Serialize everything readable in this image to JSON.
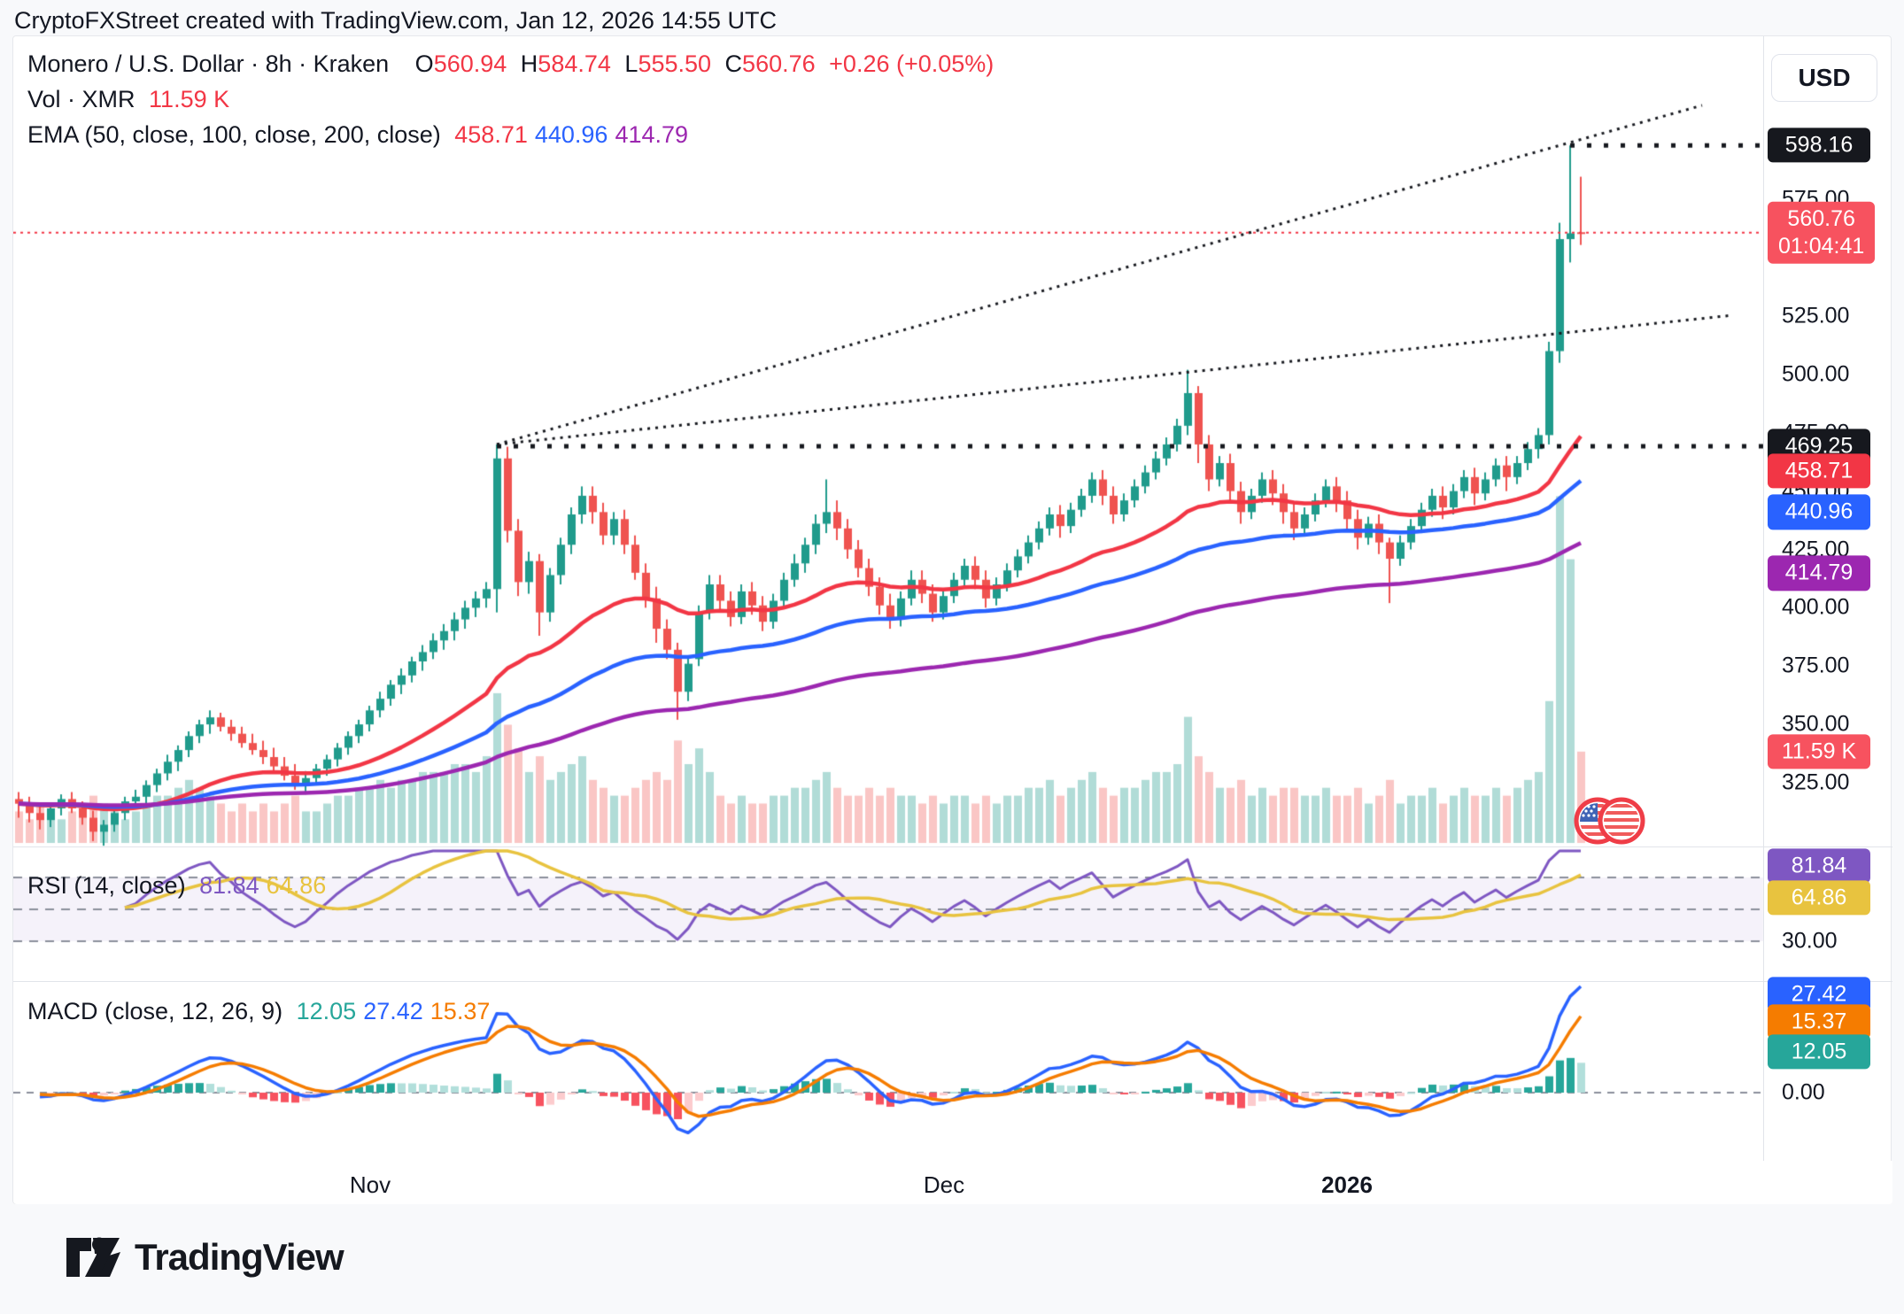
{
  "page": {
    "header": "CryptoFXStreet created with TradingView.com, Jan 12, 2026 14:55 UTC",
    "footer_brand": "TradingView"
  },
  "legend": {
    "title": "Monero / U.S. Dollar · 8h · Kraken",
    "o_label": "O",
    "o": "560.94",
    "h_label": "H",
    "h": "584.74",
    "l_label": "L",
    "l": "555.50",
    "c_label": "C",
    "c": "560.76",
    "change": "+0.26 (+0.05%)",
    "vol_label": "Vol · XMR",
    "vol_value": "11.59 K",
    "ema_label": "EMA (50, close, 100, close, 200, close)",
    "ema_values": [
      {
        "text": "458.71",
        "color": "#f23645"
      },
      {
        "text": "440.96",
        "color": "#2962ff"
      },
      {
        "text": "414.79",
        "color": "#9c27b0"
      }
    ],
    "rsi_label": "RSI (14, close)",
    "rsi_values": [
      {
        "text": "81.84",
        "color": "#7e57c2"
      },
      {
        "text": "64.86",
        "color": "#e8c33f"
      }
    ],
    "macd_label": "MACD (close, 12, 26, 9)",
    "macd_values": [
      {
        "text": "12.05",
        "color": "#26a69a"
      },
      {
        "text": "27.42",
        "color": "#2962ff"
      },
      {
        "text": "15.37",
        "color": "#f57c00"
      }
    ]
  },
  "axis": {
    "currency_button": "USD",
    "price_ticks": [
      "575.00",
      "525.00",
      "500.00",
      "475.00",
      "450.00",
      "425.00",
      "400.00",
      "375.00",
      "350.00",
      "325.00"
    ],
    "price_badges": [
      {
        "text": "598.16",
        "value": 598.16,
        "bg": "#16181e"
      },
      {
        "text": "560.76",
        "sub": "01:04:41",
        "value": 560.76,
        "bg": "#f7525f"
      },
      {
        "text": "469.25",
        "value": 469.25,
        "bg": "#16181e"
      },
      {
        "text": "458.71",
        "value": 458.71,
        "bg": "#f23645"
      },
      {
        "text": "440.96",
        "value": 440.96,
        "bg": "#2962ff"
      },
      {
        "text": "414.79",
        "value": 414.79,
        "bg": "#9c27b0"
      },
      {
        "text": "11.59 K",
        "bg": "#f7525f"
      }
    ],
    "rsi_ticks": [
      "30.00"
    ],
    "rsi_badges": [
      {
        "text": "81.84",
        "bg": "#7e57c2"
      },
      {
        "text": "64.86",
        "bg": "#e8c33f"
      }
    ],
    "macd_ticks": [
      "0.00"
    ],
    "macd_badges": [
      {
        "text": "27.42",
        "bg": "#2962ff"
      },
      {
        "text": "15.37",
        "bg": "#f57c00"
      },
      {
        "text": "12.05",
        "bg": "#26a69a"
      }
    ],
    "time_ticks": [
      {
        "label": "Nov",
        "bold": false
      },
      {
        "label": "Dec",
        "bold": false
      },
      {
        "label": "2026",
        "bold": true
      }
    ]
  },
  "chart_data": {
    "type": "candlestick",
    "symbol": "Monero / U.S. Dollar",
    "ticker": "XMRUSD",
    "exchange": "Kraken",
    "interval": "8h",
    "x_range": [
      "late Oct",
      "Jan 12, 2026"
    ],
    "price_axis_range": [
      318,
      637
    ],
    "last": {
      "open": 560.94,
      "high": 584.74,
      "low": 555.5,
      "close": 560.76,
      "change": 0.26,
      "change_pct": 0.05,
      "volume_k": 11.59,
      "countdown": "01:04:41"
    },
    "levels": {
      "swing_high": 598.16,
      "resistance_breakout": 469.25,
      "last_price_line": 560.76
    },
    "trendlines": "two dotted fan lines rising from the Nov-8 swing high (469) toward upper right, plus dotted horizontals at 469.25 and 598.16",
    "indicators": {
      "ema": {
        "label": "EMA (50, close, 100, close, 200, close)",
        "values": [
          458.71,
          440.96,
          414.79
        ],
        "colors": [
          "#f23645",
          "#2962ff",
          "#9c27b0"
        ]
      },
      "rsi": {
        "label": "RSI (14, close)",
        "value": 81.84,
        "ma_value": 64.86,
        "levels": [
          70,
          50,
          30
        ],
        "colors": [
          "#7e57c2",
          "#e8c33f"
        ]
      },
      "macd": {
        "label": "MACD (close, 12, 26, 9)",
        "histogram": 12.05,
        "macd_line": 27.42,
        "signal_line": 15.37,
        "colors": [
          "#26a69a",
          "#2962ff",
          "#f57c00"
        ]
      }
    },
    "colors": {
      "candle_up": "#209b8c",
      "candle_down": "#ef5350",
      "vol_up": "rgba(32,155,140,0.35)",
      "vol_down": "rgba(239,83,80,0.33)",
      "hist_up": "#26a69a",
      "hist_up_weak": "#b2dfdb",
      "hist_dn": "#f7525f",
      "hist_dn_weak": "#fccbcd",
      "level_line": "#16181e",
      "price_line": "#f23645",
      "rsi_band": "rgba(126,87,194,0.08)",
      "dash": "#8b8f9b"
    },
    "candles_format": [
      "open",
      "high",
      "low",
      "close",
      "volume_k"
    ],
    "candles": [
      [
        318,
        321,
        310,
        316,
        4
      ],
      [
        316,
        319,
        308,
        312,
        3
      ],
      [
        312,
        315,
        305,
        309,
        5
      ],
      [
        309,
        316,
        306,
        314,
        4
      ],
      [
        314,
        320,
        311,
        318,
        3
      ],
      [
        318,
        321,
        312,
        314,
        4
      ],
      [
        314,
        317,
        307,
        310,
        5
      ],
      [
        310,
        313,
        300,
        304,
        6
      ],
      [
        304,
        309,
        298,
        307,
        5
      ],
      [
        307,
        314,
        304,
        312,
        4
      ],
      [
        312,
        319,
        309,
        317,
        3
      ],
      [
        317,
        322,
        314,
        319,
        4
      ],
      [
        319,
        326,
        316,
        324,
        5
      ],
      [
        324,
        331,
        321,
        329,
        6
      ],
      [
        329,
        337,
        326,
        334,
        6
      ],
      [
        334,
        341,
        330,
        339,
        7
      ],
      [
        339,
        347,
        336,
        345,
        8
      ],
      [
        345,
        352,
        342,
        350,
        7
      ],
      [
        350,
        356,
        346,
        353,
        6
      ],
      [
        353,
        355,
        347,
        349,
        5
      ],
      [
        349,
        352,
        343,
        346,
        4
      ],
      [
        346,
        349,
        340,
        342,
        5
      ],
      [
        342,
        346,
        337,
        339,
        4
      ],
      [
        339,
        343,
        333,
        336,
        5
      ],
      [
        336,
        340,
        330,
        332,
        4
      ],
      [
        332,
        336,
        326,
        328,
        5
      ],
      [
        328,
        333,
        322,
        325,
        6
      ],
      [
        325,
        330,
        320,
        327,
        4
      ],
      [
        327,
        333,
        324,
        331,
        4
      ],
      [
        331,
        337,
        328,
        335,
        5
      ],
      [
        335,
        342,
        332,
        340,
        6
      ],
      [
        340,
        347,
        337,
        345,
        6
      ],
      [
        345,
        352,
        342,
        350,
        7
      ],
      [
        350,
        358,
        347,
        356,
        7
      ],
      [
        356,
        364,
        353,
        361,
        8
      ],
      [
        361,
        369,
        358,
        367,
        7
      ],
      [
        367,
        374,
        363,
        371,
        8
      ],
      [
        371,
        379,
        368,
        377,
        8
      ],
      [
        377,
        384,
        373,
        381,
        9
      ],
      [
        381,
        389,
        378,
        386,
        9
      ],
      [
        386,
        393,
        382,
        390,
        9
      ],
      [
        390,
        398,
        386,
        395,
        10
      ],
      [
        395,
        403,
        391,
        400,
        10
      ],
      [
        400,
        407,
        396,
        404,
        9
      ],
      [
        404,
        411,
        400,
        408,
        11
      ],
      [
        408,
        470,
        398,
        464,
        19
      ],
      [
        464,
        469,
        428,
        433,
        15
      ],
      [
        433,
        438,
        405,
        411,
        12
      ],
      [
        411,
        424,
        406,
        420,
        9
      ],
      [
        420,
        423,
        388,
        398,
        11
      ],
      [
        398,
        417,
        394,
        414,
        8
      ],
      [
        414,
        430,
        410,
        427,
        9
      ],
      [
        427,
        443,
        423,
        440,
        10
      ],
      [
        440,
        452,
        436,
        448,
        11
      ],
      [
        448,
        452,
        436,
        441,
        8
      ],
      [
        441,
        445,
        427,
        431,
        7
      ],
      [
        431,
        441,
        427,
        438,
        6
      ],
      [
        438,
        442,
        423,
        427,
        6
      ],
      [
        427,
        431,
        412,
        415,
        7
      ],
      [
        415,
        419,
        400,
        404,
        8
      ],
      [
        404,
        409,
        385,
        391,
        9
      ],
      [
        391,
        395,
        378,
        382,
        8
      ],
      [
        382,
        385,
        352,
        364,
        13
      ],
      [
        364,
        379,
        360,
        376,
        10
      ],
      [
        378,
        401,
        375,
        398,
        12
      ],
      [
        398,
        414,
        395,
        410,
        9
      ],
      [
        410,
        414,
        399,
        403,
        6
      ],
      [
        403,
        407,
        392,
        396,
        5
      ],
      [
        396,
        410,
        393,
        407,
        6
      ],
      [
        407,
        411,
        397,
        401,
        5
      ],
      [
        401,
        405,
        390,
        394,
        5
      ],
      [
        394,
        406,
        391,
        403,
        6
      ],
      [
        403,
        415,
        400,
        412,
        6
      ],
      [
        412,
        423,
        409,
        419,
        7
      ],
      [
        419,
        430,
        415,
        427,
        7
      ],
      [
        427,
        440,
        423,
        436,
        8
      ],
      [
        436,
        455,
        432,
        441,
        9
      ],
      [
        441,
        446,
        429,
        434,
        7
      ],
      [
        434,
        438,
        421,
        425,
        6
      ],
      [
        425,
        429,
        413,
        417,
        6
      ],
      [
        417,
        421,
        405,
        409,
        7
      ],
      [
        409,
        413,
        397,
        401,
        6
      ],
      [
        401,
        406,
        391,
        395,
        7
      ],
      [
        395,
        407,
        392,
        404,
        6
      ],
      [
        404,
        416,
        401,
        412,
        6
      ],
      [
        412,
        416,
        402,
        406,
        5
      ],
      [
        406,
        410,
        394,
        398,
        6
      ],
      [
        398,
        408,
        395,
        405,
        5
      ],
      [
        405,
        415,
        402,
        412,
        6
      ],
      [
        412,
        421,
        409,
        418,
        6
      ],
      [
        418,
        422,
        408,
        412,
        5
      ],
      [
        412,
        416,
        400,
        404,
        6
      ],
      [
        404,
        413,
        401,
        410,
        5
      ],
      [
        410,
        419,
        407,
        416,
        6
      ],
      [
        416,
        425,
        413,
        422,
        6
      ],
      [
        422,
        431,
        419,
        428,
        7
      ],
      [
        428,
        437,
        425,
        434,
        7
      ],
      [
        434,
        443,
        431,
        440,
        8
      ],
      [
        440,
        444,
        430,
        435,
        6
      ],
      [
        435,
        445,
        432,
        442,
        7
      ],
      [
        442,
        451,
        439,
        448,
        8
      ],
      [
        448,
        458,
        445,
        455,
        9
      ],
      [
        455,
        459,
        444,
        448,
        7
      ],
      [
        448,
        452,
        436,
        440,
        6
      ],
      [
        440,
        449,
        437,
        446,
        7
      ],
      [
        446,
        455,
        443,
        452,
        7
      ],
      [
        452,
        461,
        449,
        458,
        8
      ],
      [
        458,
        467,
        455,
        464,
        9
      ],
      [
        464,
        473,
        461,
        470,
        9
      ],
      [
        470,
        481,
        467,
        478,
        10
      ],
      [
        478,
        502,
        474,
        492,
        16
      ],
      [
        492,
        495,
        462,
        470,
        11
      ],
      [
        470,
        474,
        450,
        455,
        9
      ],
      [
        455,
        465,
        452,
        462,
        7
      ],
      [
        462,
        466,
        445,
        450,
        7
      ],
      [
        450,
        454,
        436,
        441,
        8
      ],
      [
        441,
        451,
        438,
        448,
        6
      ],
      [
        448,
        458,
        445,
        455,
        7
      ],
      [
        455,
        459,
        444,
        449,
        6
      ],
      [
        449,
        453,
        436,
        441,
        7
      ],
      [
        441,
        445,
        429,
        434,
        7
      ],
      [
        434,
        443,
        431,
        440,
        6
      ],
      [
        440,
        449,
        437,
        446,
        6
      ],
      [
        446,
        455,
        443,
        452,
        7
      ],
      [
        452,
        456,
        441,
        446,
        6
      ],
      [
        446,
        450,
        433,
        438,
        6
      ],
      [
        438,
        442,
        425,
        430,
        7
      ],
      [
        430,
        439,
        427,
        436,
        5
      ],
      [
        436,
        440,
        423,
        428,
        6
      ],
      [
        428,
        430,
        402,
        421,
        8
      ],
      [
        421,
        431,
        418,
        428,
        5
      ],
      [
        428,
        438,
        425,
        435,
        6
      ],
      [
        435,
        445,
        432,
        442,
        6
      ],
      [
        442,
        451,
        439,
        448,
        7
      ],
      [
        448,
        452,
        438,
        443,
        5
      ],
      [
        443,
        453,
        440,
        450,
        6
      ],
      [
        450,
        459,
        447,
        456,
        7
      ],
      [
        456,
        460,
        444,
        449,
        6
      ],
      [
        449,
        458,
        446,
        455,
        6
      ],
      [
        455,
        464,
        452,
        461,
        7
      ],
      [
        461,
        465,
        450,
        456,
        6
      ],
      [
        456,
        465,
        453,
        462,
        7
      ],
      [
        462,
        471,
        459,
        468,
        8
      ],
      [
        468,
        477,
        464,
        474,
        9
      ],
      [
        474,
        514,
        470,
        510,
        18
      ],
      [
        510,
        565,
        505,
        558,
        44
      ],
      [
        558,
        598.16,
        548,
        560.5,
        36
      ],
      [
        560.94,
        584.74,
        555.5,
        560.76,
        11.59
      ]
    ]
  }
}
